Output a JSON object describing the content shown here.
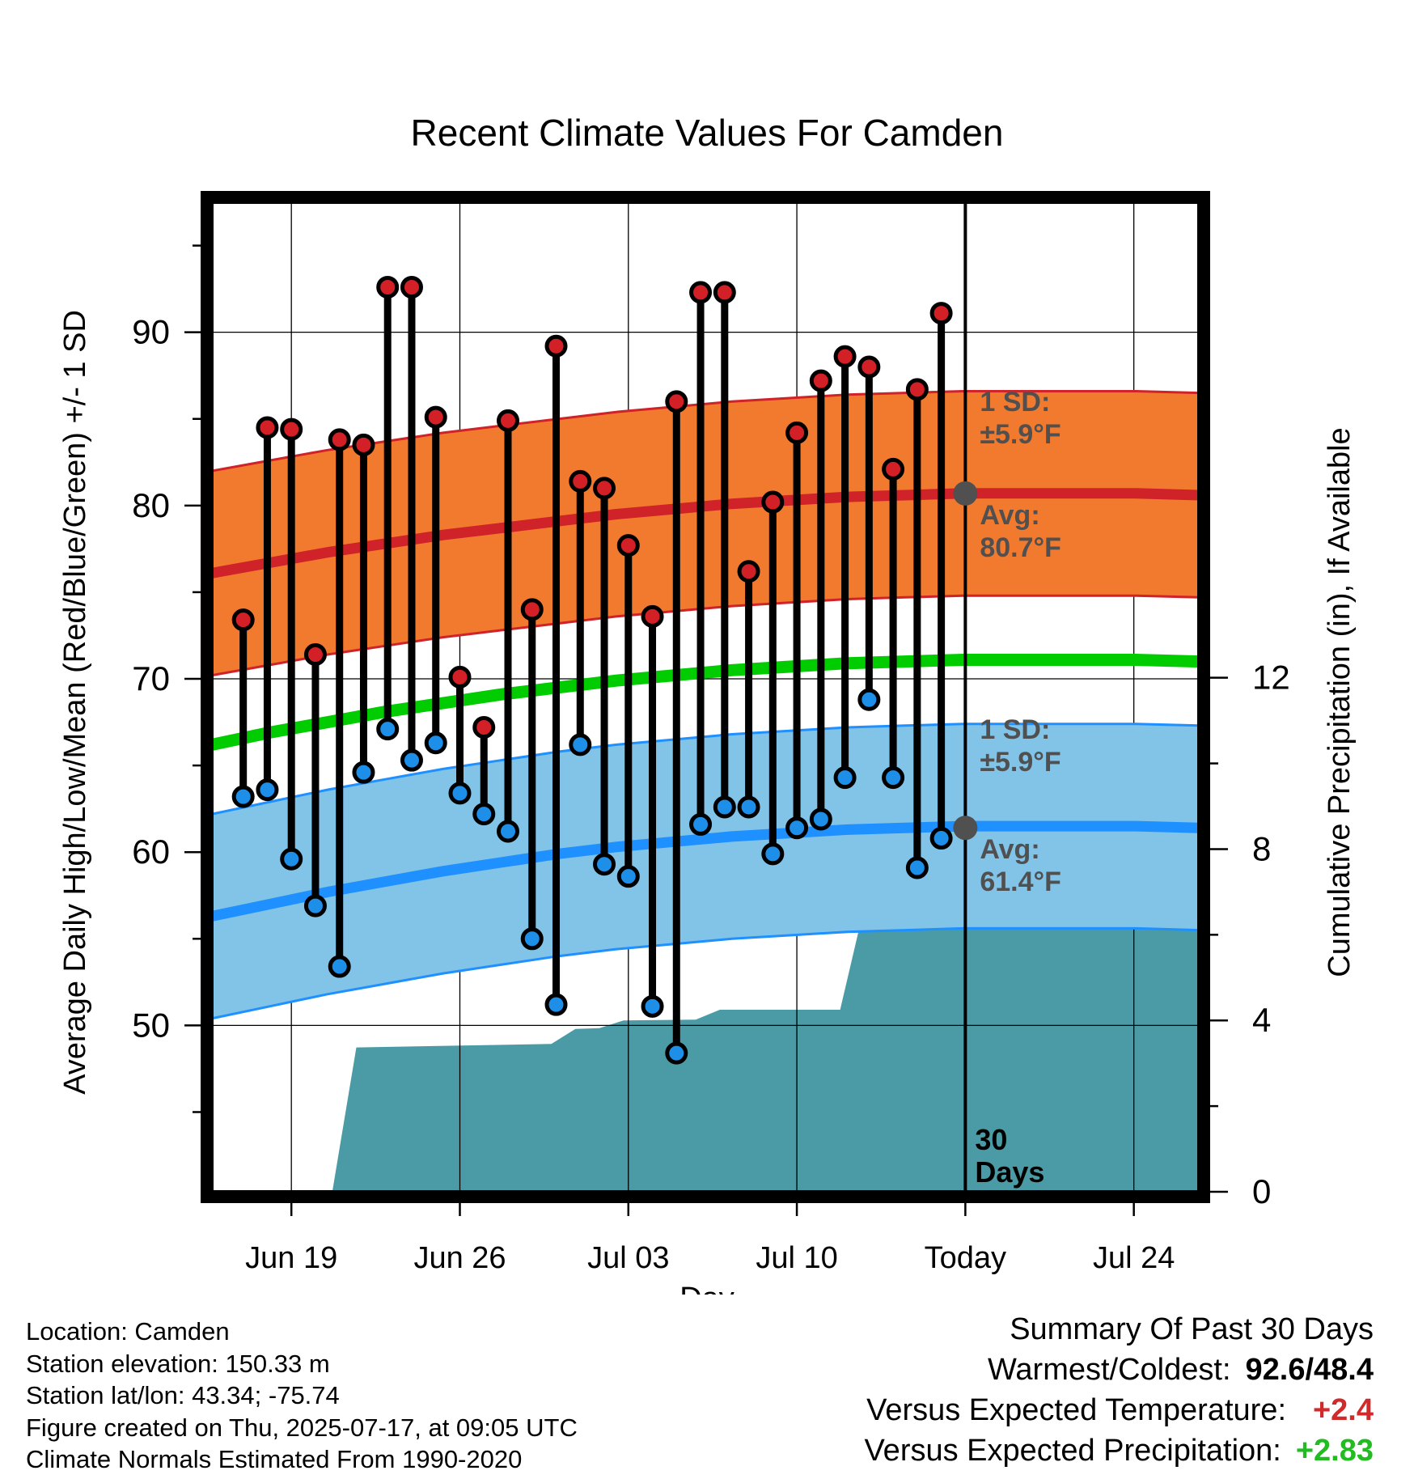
{
  "chart_data": {
    "type": "line",
    "title": "Recent Climate Values For Camden",
    "xlabel": "Day",
    "ylabel_left": "Average Daily High/Low/Mean (Red/Blue/Green) +/- 1 SD",
    "ylabel_right": "Cumulative Precipitation (in), If Available",
    "x_ticks": [
      {
        "day": 2,
        "label": "Jun 19"
      },
      {
        "day": 9,
        "label": "Jun 26"
      },
      {
        "day": 16,
        "label": "Jul 03"
      },
      {
        "day": 23,
        "label": "Jul 10"
      },
      {
        "day": 30,
        "label": "Today"
      },
      {
        "day": 37,
        "label": "Jul 24"
      }
    ],
    "xlim": [
      -1.3,
      39.7
    ],
    "ylim_left": [
      40.4,
      97.5
    ],
    "ylim_right": [
      0,
      23.1
    ],
    "yticks_left": [
      50,
      60,
      70,
      80,
      90
    ],
    "yticks_right": [
      0,
      4,
      8,
      12
    ],
    "today_day": 30,
    "today_label": "30\nDays",
    "highs": [
      73.4,
      84.5,
      84.4,
      71.4,
      83.8,
      83.5,
      92.6,
      92.6,
      85.1,
      70.1,
      67.2,
      84.9,
      74.0,
      89.2,
      81.4,
      81.0,
      77.7,
      73.6,
      86.0,
      92.3,
      92.3,
      76.2,
      80.2,
      84.2,
      87.2,
      88.6,
      88.0,
      82.1,
      86.7,
      91.1
    ],
    "lows": [
      63.2,
      63.6,
      59.6,
      56.9,
      53.4,
      64.6,
      67.1,
      65.3,
      66.3,
      63.4,
      62.2,
      61.2,
      55.0,
      51.2,
      66.2,
      59.3,
      58.6,
      51.1,
      48.4,
      61.6,
      62.6,
      62.6,
      59.9,
      61.4,
      61.9,
      64.3,
      68.8,
      64.3,
      59.1,
      60.8
    ],
    "normal_high": [
      76.1,
      76.7,
      77.3,
      77.8,
      78.3,
      78.7,
      79.1,
      79.5,
      79.8,
      80.1,
      80.3,
      80.5,
      80.6,
      80.7,
      80.7,
      80.7,
      80.7,
      80.6
    ],
    "normal_low": [
      56.3,
      57.0,
      57.7,
      58.3,
      58.9,
      59.4,
      59.9,
      60.3,
      60.6,
      60.9,
      61.1,
      61.3,
      61.4,
      61.5,
      61.5,
      61.5,
      61.5,
      61.4
    ],
    "normal_mean": [
      66.2,
      66.9,
      67.5,
      68.1,
      68.6,
      69.1,
      69.5,
      69.9,
      70.2,
      70.5,
      70.7,
      70.9,
      71.0,
      71.1,
      71.1,
      71.1,
      71.1,
      71.0
    ],
    "normal_days": [
      -1.3,
      1.1,
      3.5,
      5.9,
      8.3,
      10.7,
      13.1,
      15.5,
      17.9,
      20.3,
      22.7,
      25.1,
      27.5,
      29.9,
      32.3,
      34.7,
      37.1,
      39.7
    ],
    "sd": 5.9,
    "precip_cumulative": [
      {
        "day": 3.7,
        "value": 0
      },
      {
        "day": 4.7,
        "value": 3.37
      },
      {
        "day": 12.8,
        "value": 3.45
      },
      {
        "day": 13.8,
        "value": 3.8
      },
      {
        "day": 14.8,
        "value": 3.82
      },
      {
        "day": 15.8,
        "value": 4.0
      },
      {
        "day": 18.8,
        "value": 4.02
      },
      {
        "day": 19.8,
        "value": 4.25
      },
      {
        "day": 24.8,
        "value": 4.25
      },
      {
        "day": 25.8,
        "value": 6.65
      },
      {
        "day": 39.7,
        "value": 6.65
      }
    ],
    "band_labels": {
      "high_sd": "1 SD:\n±5.9°F",
      "high_avg": "Avg:\n80.7°F",
      "low_sd": "1 SD:\n±5.9°F",
      "low_avg": "Avg:\n61.4°F"
    },
    "colors": {
      "high_band": "#f27a2e",
      "high_line": "#cf2229",
      "low_band": "#82c3e8",
      "low_line": "#1e90ff",
      "mean_line": "#00cc00",
      "precip": "#4a9ba5",
      "high_dot": "#d32026",
      "low_dot": "#1e8fe8",
      "annotation": "#505050"
    }
  },
  "metadata": {
    "location": "Location: Camden",
    "elevation": "Station elevation: 150.33 m",
    "latlon": "Station lat/lon: 43.34; -75.74",
    "created": "Figure created on Thu, 2025-07-17, at 09:05 UTC",
    "normals": "Climate Normals Estimated From 1990-2020"
  },
  "summary": {
    "title": "Summary Of Past 30 Days",
    "warmest_label": "Warmest/Coldest:",
    "warmest_value": "92.6/48.4",
    "temp_label": "Versus Expected Temperature:",
    "temp_value": "+2.4",
    "temp_color": "#d12a2a",
    "precip_label": "Versus Expected Precipitation:",
    "precip_value": "+2.83",
    "precip_color": "#22bb22"
  }
}
